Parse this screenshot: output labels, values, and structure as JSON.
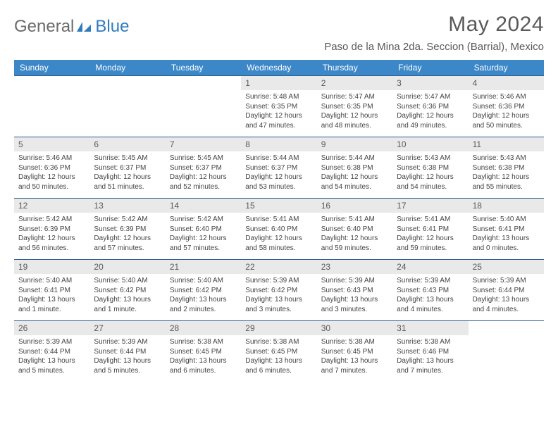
{
  "brand": {
    "part1": "General",
    "part2": "Blue"
  },
  "title": "May 2024",
  "location": "Paso de la Mina 2da. Seccion (Barrial), Mexico",
  "colors": {
    "header_bg": "#3b87c8",
    "header_text": "#ffffff",
    "daynum_bg": "#e9e9e9",
    "border": "#2d5f8f",
    "title_color": "#595959",
    "body_text": "#444444"
  },
  "dow": [
    "Sunday",
    "Monday",
    "Tuesday",
    "Wednesday",
    "Thursday",
    "Friday",
    "Saturday"
  ],
  "weeks": [
    [
      {
        "n": "",
        "sr": "",
        "ss": "",
        "dl": ""
      },
      {
        "n": "",
        "sr": "",
        "ss": "",
        "dl": ""
      },
      {
        "n": "",
        "sr": "",
        "ss": "",
        "dl": ""
      },
      {
        "n": "1",
        "sr": "Sunrise: 5:48 AM",
        "ss": "Sunset: 6:35 PM",
        "dl": "Daylight: 12 hours and 47 minutes."
      },
      {
        "n": "2",
        "sr": "Sunrise: 5:47 AM",
        "ss": "Sunset: 6:35 PM",
        "dl": "Daylight: 12 hours and 48 minutes."
      },
      {
        "n": "3",
        "sr": "Sunrise: 5:47 AM",
        "ss": "Sunset: 6:36 PM",
        "dl": "Daylight: 12 hours and 49 minutes."
      },
      {
        "n": "4",
        "sr": "Sunrise: 5:46 AM",
        "ss": "Sunset: 6:36 PM",
        "dl": "Daylight: 12 hours and 50 minutes."
      }
    ],
    [
      {
        "n": "5",
        "sr": "Sunrise: 5:46 AM",
        "ss": "Sunset: 6:36 PM",
        "dl": "Daylight: 12 hours and 50 minutes."
      },
      {
        "n": "6",
        "sr": "Sunrise: 5:45 AM",
        "ss": "Sunset: 6:37 PM",
        "dl": "Daylight: 12 hours and 51 minutes."
      },
      {
        "n": "7",
        "sr": "Sunrise: 5:45 AM",
        "ss": "Sunset: 6:37 PM",
        "dl": "Daylight: 12 hours and 52 minutes."
      },
      {
        "n": "8",
        "sr": "Sunrise: 5:44 AM",
        "ss": "Sunset: 6:37 PM",
        "dl": "Daylight: 12 hours and 53 minutes."
      },
      {
        "n": "9",
        "sr": "Sunrise: 5:44 AM",
        "ss": "Sunset: 6:38 PM",
        "dl": "Daylight: 12 hours and 54 minutes."
      },
      {
        "n": "10",
        "sr": "Sunrise: 5:43 AM",
        "ss": "Sunset: 6:38 PM",
        "dl": "Daylight: 12 hours and 54 minutes."
      },
      {
        "n": "11",
        "sr": "Sunrise: 5:43 AM",
        "ss": "Sunset: 6:38 PM",
        "dl": "Daylight: 12 hours and 55 minutes."
      }
    ],
    [
      {
        "n": "12",
        "sr": "Sunrise: 5:42 AM",
        "ss": "Sunset: 6:39 PM",
        "dl": "Daylight: 12 hours and 56 minutes."
      },
      {
        "n": "13",
        "sr": "Sunrise: 5:42 AM",
        "ss": "Sunset: 6:39 PM",
        "dl": "Daylight: 12 hours and 57 minutes."
      },
      {
        "n": "14",
        "sr": "Sunrise: 5:42 AM",
        "ss": "Sunset: 6:40 PM",
        "dl": "Daylight: 12 hours and 57 minutes."
      },
      {
        "n": "15",
        "sr": "Sunrise: 5:41 AM",
        "ss": "Sunset: 6:40 PM",
        "dl": "Daylight: 12 hours and 58 minutes."
      },
      {
        "n": "16",
        "sr": "Sunrise: 5:41 AM",
        "ss": "Sunset: 6:40 PM",
        "dl": "Daylight: 12 hours and 59 minutes."
      },
      {
        "n": "17",
        "sr": "Sunrise: 5:41 AM",
        "ss": "Sunset: 6:41 PM",
        "dl": "Daylight: 12 hours and 59 minutes."
      },
      {
        "n": "18",
        "sr": "Sunrise: 5:40 AM",
        "ss": "Sunset: 6:41 PM",
        "dl": "Daylight: 13 hours and 0 minutes."
      }
    ],
    [
      {
        "n": "19",
        "sr": "Sunrise: 5:40 AM",
        "ss": "Sunset: 6:41 PM",
        "dl": "Daylight: 13 hours and 1 minute."
      },
      {
        "n": "20",
        "sr": "Sunrise: 5:40 AM",
        "ss": "Sunset: 6:42 PM",
        "dl": "Daylight: 13 hours and 1 minute."
      },
      {
        "n": "21",
        "sr": "Sunrise: 5:40 AM",
        "ss": "Sunset: 6:42 PM",
        "dl": "Daylight: 13 hours and 2 minutes."
      },
      {
        "n": "22",
        "sr": "Sunrise: 5:39 AM",
        "ss": "Sunset: 6:42 PM",
        "dl": "Daylight: 13 hours and 3 minutes."
      },
      {
        "n": "23",
        "sr": "Sunrise: 5:39 AM",
        "ss": "Sunset: 6:43 PM",
        "dl": "Daylight: 13 hours and 3 minutes."
      },
      {
        "n": "24",
        "sr": "Sunrise: 5:39 AM",
        "ss": "Sunset: 6:43 PM",
        "dl": "Daylight: 13 hours and 4 minutes."
      },
      {
        "n": "25",
        "sr": "Sunrise: 5:39 AM",
        "ss": "Sunset: 6:44 PM",
        "dl": "Daylight: 13 hours and 4 minutes."
      }
    ],
    [
      {
        "n": "26",
        "sr": "Sunrise: 5:39 AM",
        "ss": "Sunset: 6:44 PM",
        "dl": "Daylight: 13 hours and 5 minutes."
      },
      {
        "n": "27",
        "sr": "Sunrise: 5:39 AM",
        "ss": "Sunset: 6:44 PM",
        "dl": "Daylight: 13 hours and 5 minutes."
      },
      {
        "n": "28",
        "sr": "Sunrise: 5:38 AM",
        "ss": "Sunset: 6:45 PM",
        "dl": "Daylight: 13 hours and 6 minutes."
      },
      {
        "n": "29",
        "sr": "Sunrise: 5:38 AM",
        "ss": "Sunset: 6:45 PM",
        "dl": "Daylight: 13 hours and 6 minutes."
      },
      {
        "n": "30",
        "sr": "Sunrise: 5:38 AM",
        "ss": "Sunset: 6:45 PM",
        "dl": "Daylight: 13 hours and 7 minutes."
      },
      {
        "n": "31",
        "sr": "Sunrise: 5:38 AM",
        "ss": "Sunset: 6:46 PM",
        "dl": "Daylight: 13 hours and 7 minutes."
      },
      {
        "n": "",
        "sr": "",
        "ss": "",
        "dl": ""
      }
    ]
  ]
}
